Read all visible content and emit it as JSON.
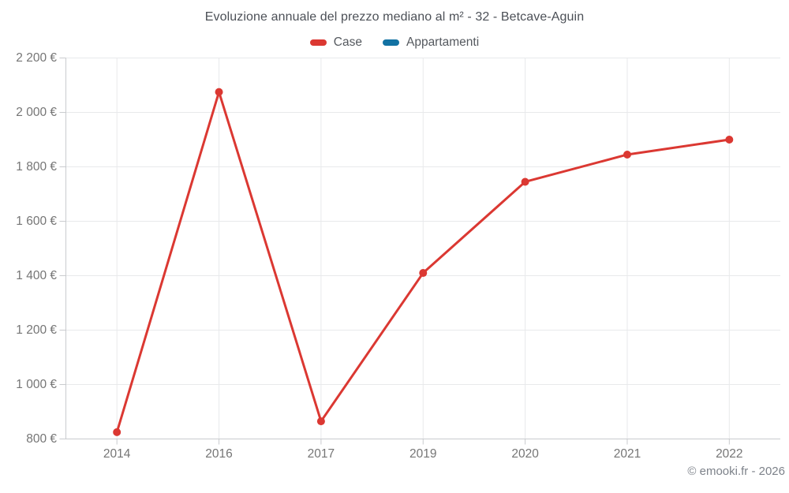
{
  "title": "Evoluzione annuale del prezzo mediano al m² - 32 - Betcave-Aguin",
  "legend": {
    "items": [
      {
        "label": "Case",
        "color": "#db3832"
      },
      {
        "label": "Appartamenti",
        "color": "#1272a3"
      }
    ]
  },
  "attribution": "© emooki.fr - 2026",
  "colors": {
    "grid": "#e8e9eb",
    "axis": "#c9cbce",
    "tick_label": "#757575"
  },
  "chart_data": {
    "type": "line",
    "categories": [
      "2014",
      "2016",
      "2017",
      "2019",
      "2020",
      "2021",
      "2022"
    ],
    "series": [
      {
        "name": "Case",
        "color": "#db3832",
        "values": [
          825,
          2075,
          865,
          1410,
          1745,
          1845,
          1900
        ]
      },
      {
        "name": "Appartamenti",
        "color": "#1272a3",
        "values": []
      }
    ],
    "title": "Evoluzione annuale del prezzo mediano al m² - 32 - Betcave-Aguin",
    "xlabel": "",
    "ylabel": "",
    "ylim": [
      800,
      2200
    ],
    "yticks": [
      800,
      1000,
      1200,
      1400,
      1600,
      1800,
      2000,
      2200
    ],
    "ytick_labels": [
      "800 €",
      "1 000 €",
      "1 200 €",
      "1 400 €",
      "1 600 €",
      "1 800 €",
      "2 000 €",
      "2 200 €"
    ],
    "grid": true,
    "legend_position": "top"
  }
}
